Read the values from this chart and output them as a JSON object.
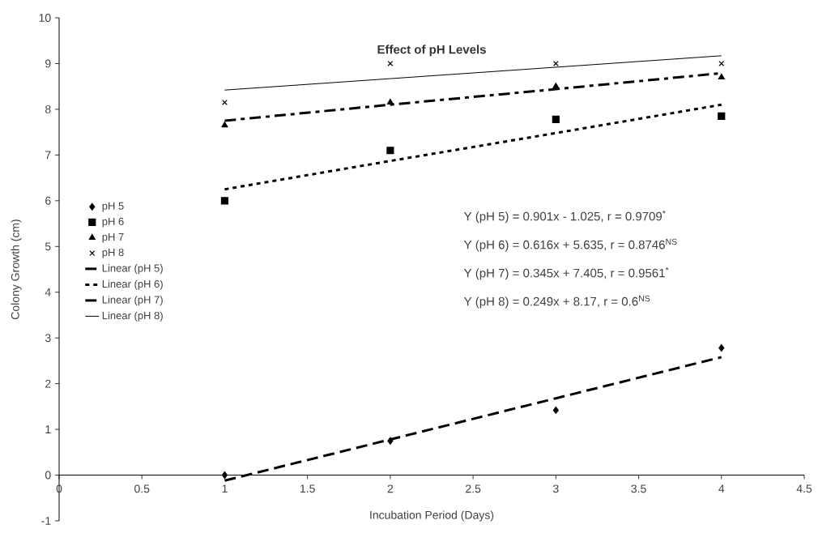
{
  "chart_data": {
    "type": "scatter",
    "title": "Effect of pH Levels",
    "xlabel": "Incubation Period (Days)",
    "ylabel": "Colony Growth (cm)",
    "x": [
      1,
      2,
      3,
      4
    ],
    "series": [
      {
        "name": "pH 5",
        "color": "#000000",
        "marker": "diamond",
        "values": [
          0,
          0.75,
          1.42,
          2.78
        ]
      },
      {
        "name": "pH 6",
        "color": "#000000",
        "marker": "square",
        "values": [
          6.0,
          7.1,
          7.78,
          7.85
        ]
      },
      {
        "name": "pH 7",
        "color": "#000000",
        "marker": "triangle",
        "values": [
          7.65,
          8.15,
          8.5,
          8.7
        ]
      },
      {
        "name": "pH 8",
        "color": "#000000",
        "marker": "cross",
        "values": [
          8.15,
          9.0,
          9.0,
          9.0
        ]
      },
      {
        "name": "Linear (pH 5)",
        "type": "line",
        "color": "#000000",
        "marker": "none",
        "line_style": "dashed",
        "values": [
          -0.12,
          0.78,
          1.68,
          2.58
        ]
      },
      {
        "name": "Linear (pH 6)",
        "type": "line",
        "color": "#000000",
        "marker": "none",
        "line_style": "dotted",
        "values": [
          6.25,
          6.87,
          7.48,
          8.1
        ]
      },
      {
        "name": "Linear (pH 7)",
        "type": "line",
        "color": "#000000",
        "marker": "none",
        "line_style": "dashdot",
        "values": [
          7.75,
          8.1,
          8.44,
          8.79
        ]
      },
      {
        "name": "Linear (pH 8)",
        "type": "line",
        "color": "#000000",
        "marker": "none",
        "line_style": "solid",
        "values": [
          8.42,
          8.67,
          8.92,
          9.17
        ]
      }
    ],
    "xlim": [
      0,
      4.5
    ],
    "xticks": [
      0,
      0.5,
      1,
      1.5,
      2,
      2.5,
      3,
      3.5,
      4,
      4.5
    ],
    "ylim": [
      -1,
      10
    ],
    "yticks": [
      -1,
      0,
      1,
      2,
      3,
      4,
      5,
      6,
      7,
      8,
      9,
      10
    ],
    "grid": false,
    "legend": "left",
    "annotations": [
      "Y (pH 5) = 0.901x - 1.025, r = 0.9709$^{*}$",
      "Y (pH 6) = 0.616x + 5.635, r = 0.8746$^{NS}$",
      "Y (pH 7) = 0.345x + 7.405, r = 0.9561$^{*}$",
      "Y (pH 8) = 0.249x + 8.17, r = 0.6$^{NS}$"
    ]
  }
}
